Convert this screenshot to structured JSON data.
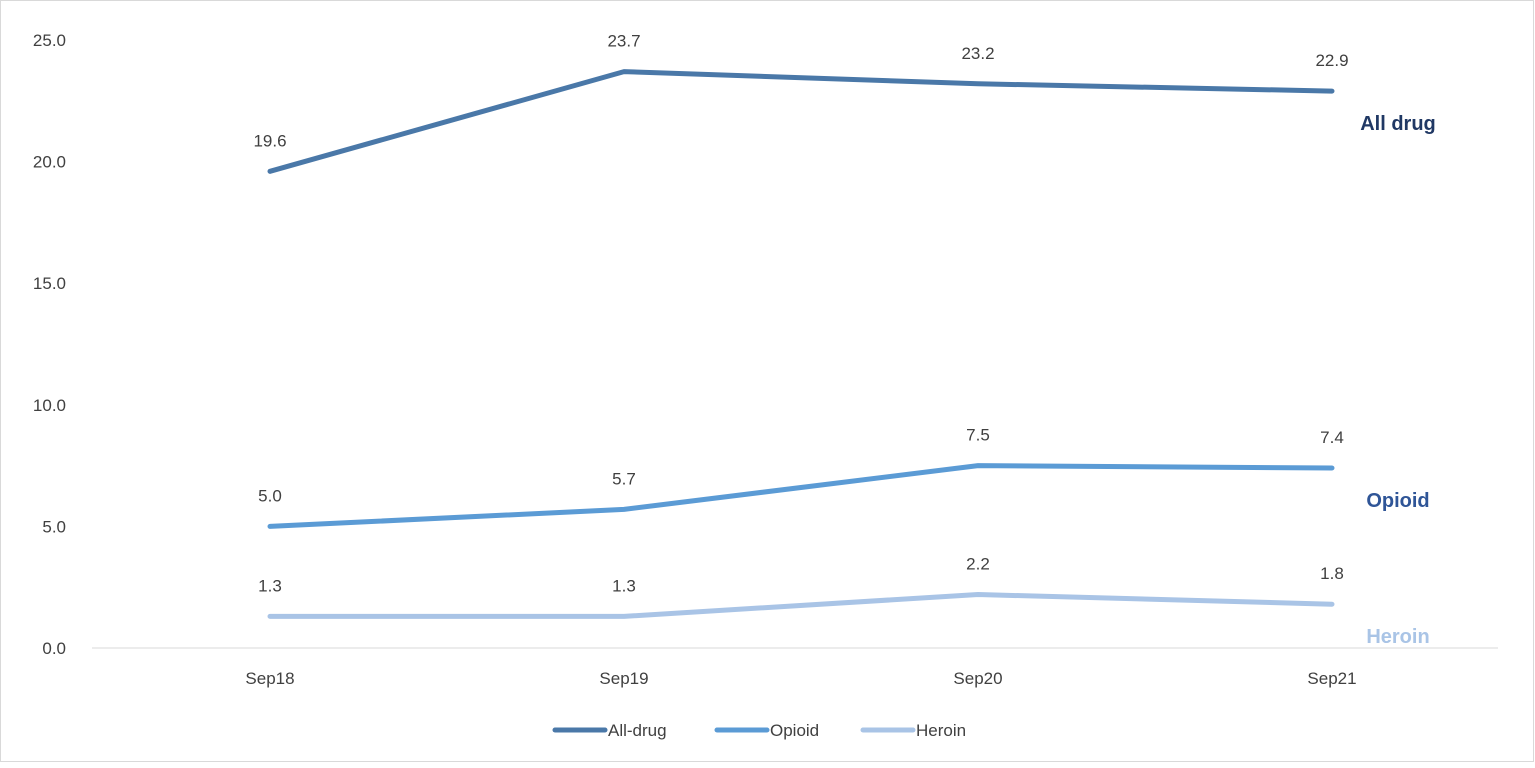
{
  "chart_data": {
    "type": "line",
    "categories": [
      "Sep18",
      "Sep19",
      "Sep20",
      "Sep21"
    ],
    "ylim": [
      0,
      25
    ],
    "yticks": [
      "0.0",
      "5.0",
      "10.0",
      "15.0",
      "20.0",
      "25.0"
    ],
    "grid": false,
    "legend_position": "bottom",
    "series": [
      {
        "name": "All-drug",
        "end_label": "All drug",
        "color": "#4a78a8",
        "label_color": "#203864",
        "values": [
          19.6,
          23.7,
          23.2,
          22.9
        ],
        "value_labels": [
          "19.6",
          "23.7",
          "23.2",
          "22.9"
        ]
      },
      {
        "name": "Opioid",
        "end_label": "Opioid",
        "color": "#5b9bd5",
        "label_color": "#2f5597",
        "values": [
          5.0,
          5.7,
          7.5,
          7.4
        ],
        "value_labels": [
          "5.0",
          "5.7",
          "7.5",
          "7.4"
        ]
      },
      {
        "name": "Heroin",
        "end_label": "Heroin",
        "color": "#a9c4e6",
        "label_color": "#a9c4e6",
        "values": [
          1.3,
          1.3,
          2.2,
          1.8
        ],
        "value_labels": [
          "1.3",
          "1.3",
          "2.2",
          "1.8"
        ]
      }
    ]
  }
}
